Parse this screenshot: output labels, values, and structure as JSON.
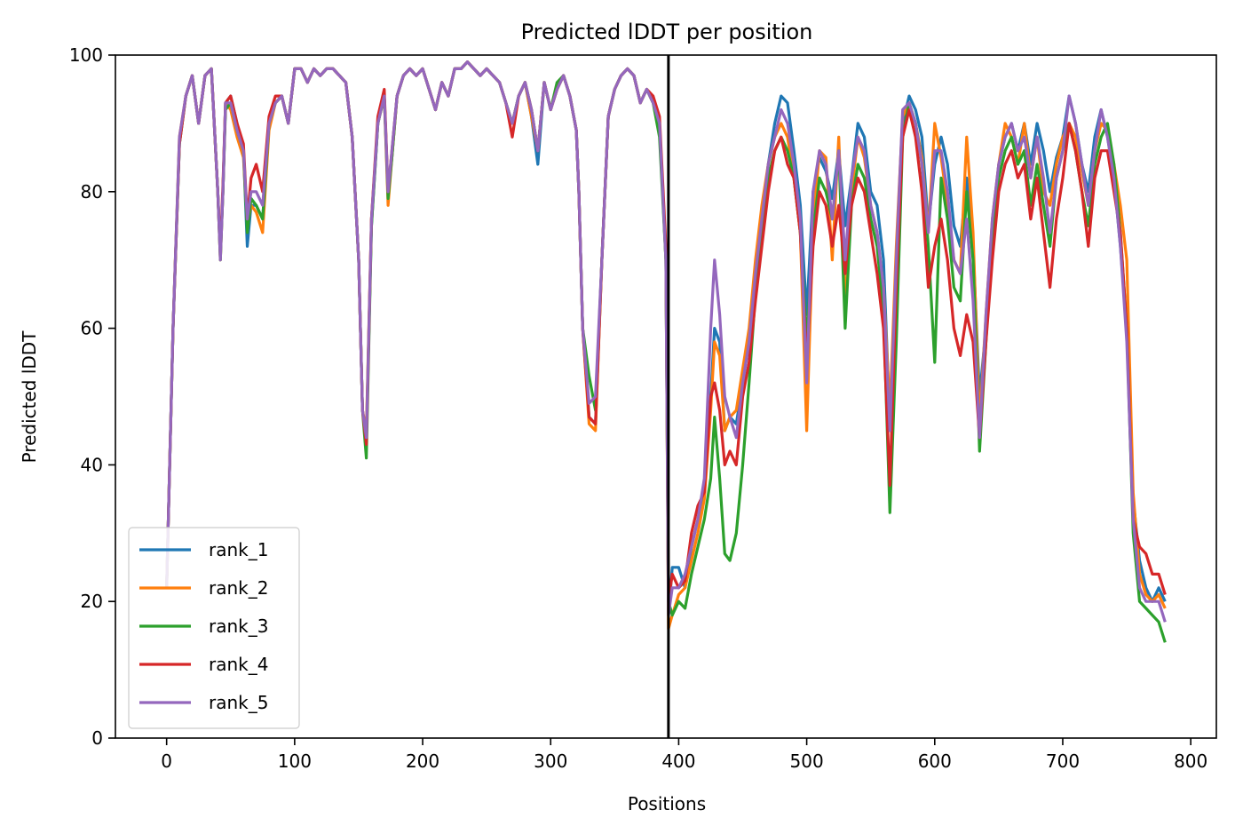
{
  "chart_data": {
    "type": "line",
    "title": "Predicted lDDT per position",
    "xlabel": "Positions",
    "ylabel": "Predicted lDDT",
    "xlim": [
      -40,
      820
    ],
    "ylim": [
      0,
      100
    ],
    "xticks": [
      0,
      100,
      200,
      300,
      400,
      500,
      600,
      700,
      800
    ],
    "yticks": [
      0,
      20,
      40,
      60,
      80,
      100
    ],
    "grid": false,
    "legend_position": "lower-left",
    "vline": {
      "x": 392,
      "color": "#000000"
    },
    "x": [
      0,
      5,
      10,
      15,
      20,
      25,
      30,
      35,
      40,
      42,
      44,
      46,
      50,
      55,
      60,
      63,
      66,
      70,
      75,
      80,
      85,
      90,
      95,
      100,
      105,
      110,
      115,
      120,
      125,
      130,
      135,
      140,
      145,
      150,
      153,
      156,
      160,
      165,
      170,
      173,
      176,
      180,
      185,
      190,
      195,
      200,
      205,
      210,
      215,
      220,
      225,
      230,
      235,
      240,
      245,
      250,
      255,
      260,
      265,
      270,
      275,
      280,
      285,
      290,
      295,
      300,
      305,
      310,
      315,
      320,
      322,
      325,
      330,
      335,
      340,
      345,
      350,
      355,
      360,
      365,
      370,
      375,
      380,
      385,
      390,
      392,
      395,
      400,
      405,
      410,
      415,
      420,
      425,
      428,
      432,
      436,
      440,
      445,
      450,
      455,
      460,
      465,
      470,
      475,
      480,
      485,
      490,
      495,
      500,
      505,
      510,
      515,
      520,
      525,
      530,
      535,
      540,
      545,
      550,
      555,
      560,
      565,
      570,
      575,
      580,
      585,
      590,
      595,
      600,
      605,
      610,
      615,
      620,
      625,
      630,
      635,
      640,
      645,
      650,
      655,
      660,
      665,
      670,
      675,
      680,
      685,
      690,
      695,
      700,
      705,
      710,
      715,
      720,
      725,
      730,
      735,
      740,
      745,
      750,
      755,
      760,
      765,
      770,
      775,
      780
    ],
    "series": [
      {
        "name": "rank_1",
        "color": "#1f77b4",
        "values": [
          22,
          60,
          87,
          94,
          97,
          90,
          97,
          98,
          80,
          71,
          80,
          93,
          94,
          90,
          86,
          72,
          78,
          78,
          76,
          90,
          93,
          94,
          90,
          98,
          98,
          96,
          98,
          97,
          98,
          98,
          97,
          96,
          88,
          70,
          48,
          44,
          75,
          90,
          94,
          80,
          85,
          94,
          97,
          98,
          97,
          98,
          95,
          92,
          96,
          94,
          98,
          98,
          99,
          98,
          97,
          98,
          97,
          96,
          93,
          90,
          94,
          96,
          91,
          84,
          96,
          92,
          95,
          97,
          94,
          89,
          80,
          60,
          47,
          46,
          70,
          91,
          95,
          97,
          98,
          97,
          93,
          95,
          93,
          90,
          70,
          18,
          25,
          25,
          22,
          28,
          32,
          37,
          50,
          60,
          58,
          45,
          47,
          46,
          52,
          58,
          68,
          76,
          84,
          90,
          94,
          93,
          86,
          78,
          62,
          80,
          85,
          83,
          79,
          86,
          75,
          82,
          90,
          88,
          80,
          78,
          70,
          46,
          70,
          90,
          94,
          92,
          88,
          75,
          84,
          88,
          84,
          75,
          72,
          82,
          72,
          50,
          60,
          75,
          84,
          88,
          90,
          86,
          90,
          84,
          90,
          86,
          80,
          85,
          88,
          94,
          90,
          84,
          80,
          88,
          92,
          88,
          82,
          72,
          60,
          35,
          26,
          22,
          20,
          22,
          20
        ]
      },
      {
        "name": "rank_2",
        "color": "#ff7f0e",
        "values": [
          22,
          60,
          88,
          94,
          97,
          90,
          97,
          98,
          80,
          70,
          80,
          93,
          92,
          88,
          85,
          75,
          78,
          77,
          74,
          89,
          93,
          94,
          90,
          98,
          98,
          96,
          98,
          97,
          98,
          98,
          97,
          96,
          88,
          70,
          48,
          45,
          76,
          90,
          94,
          78,
          85,
          94,
          97,
          98,
          97,
          98,
          95,
          92,
          96,
          94,
          98,
          98,
          99,
          98,
          97,
          98,
          97,
          96,
          93,
          90,
          94,
          96,
          91,
          86,
          96,
          92,
          95,
          97,
          94,
          89,
          80,
          60,
          46,
          45,
          70,
          91,
          95,
          97,
          98,
          97,
          93,
          95,
          93,
          90,
          70,
          16,
          18,
          21,
          22,
          26,
          30,
          35,
          48,
          58,
          56,
          45,
          47,
          48,
          54,
          60,
          70,
          78,
          84,
          88,
          90,
          88,
          82,
          74,
          45,
          75,
          86,
          85,
          70,
          88,
          63,
          80,
          88,
          85,
          78,
          74,
          66,
          48,
          72,
          91,
          93,
          90,
          85,
          74,
          90,
          85,
          78,
          70,
          68,
          88,
          74,
          46,
          62,
          76,
          84,
          90,
          88,
          84,
          90,
          82,
          88,
          80,
          78,
          84,
          88,
          90,
          88,
          83,
          78,
          86,
          90,
          89,
          84,
          78,
          70,
          36,
          24,
          21,
          20,
          21,
          19
        ]
      },
      {
        "name": "rank_3",
        "color": "#2ca02c",
        "values": [
          22,
          60,
          87,
          94,
          97,
          90,
          97,
          98,
          80,
          70,
          80,
          92,
          93,
          89,
          86,
          74,
          79,
          78,
          76,
          90,
          93,
          94,
          90,
          98,
          98,
          96,
          98,
          97,
          98,
          98,
          97,
          96,
          88,
          70,
          48,
          41,
          75,
          90,
          94,
          79,
          85,
          94,
          97,
          98,
          97,
          98,
          95,
          92,
          96,
          94,
          98,
          98,
          99,
          98,
          97,
          98,
          97,
          96,
          93,
          90,
          94,
          96,
          92,
          86,
          96,
          92,
          96,
          97,
          94,
          89,
          80,
          60,
          53,
          48,
          70,
          91,
          95,
          97,
          98,
          97,
          93,
          95,
          93,
          88,
          70,
          20,
          18,
          20,
          19,
          24,
          28,
          32,
          38,
          47,
          38,
          27,
          26,
          30,
          40,
          52,
          65,
          74,
          82,
          86,
          88,
          86,
          82,
          74,
          58,
          74,
          82,
          80,
          76,
          86,
          60,
          78,
          84,
          82,
          76,
          72,
          62,
          33,
          58,
          88,
          93,
          90,
          84,
          72,
          55,
          82,
          76,
          66,
          64,
          80,
          70,
          42,
          58,
          74,
          82,
          86,
          88,
          84,
          86,
          78,
          84,
          78,
          72,
          82,
          86,
          90,
          86,
          80,
          75,
          84,
          88,
          90,
          84,
          74,
          60,
          30,
          20,
          19,
          18,
          17,
          14
        ]
      },
      {
        "name": "rank_4",
        "color": "#d62728",
        "values": [
          22,
          60,
          87,
          94,
          97,
          90,
          97,
          98,
          80,
          71,
          81,
          93,
          94,
          90,
          87,
          76,
          82,
          84,
          80,
          91,
          94,
          94,
          90,
          98,
          98,
          96,
          98,
          97,
          98,
          98,
          97,
          96,
          88,
          70,
          48,
          43,
          76,
          91,
          95,
          80,
          86,
          94,
          97,
          98,
          97,
          98,
          95,
          92,
          96,
          94,
          98,
          98,
          99,
          98,
          97,
          98,
          97,
          96,
          93,
          88,
          94,
          96,
          92,
          86,
          96,
          92,
          95,
          97,
          94,
          89,
          80,
          60,
          47,
          46,
          70,
          91,
          95,
          97,
          98,
          97,
          93,
          95,
          94,
          91,
          72,
          20,
          24,
          22,
          23,
          30,
          34,
          36,
          50,
          52,
          48,
          40,
          42,
          40,
          50,
          55,
          64,
          72,
          80,
          86,
          88,
          84,
          82,
          74,
          55,
          72,
          80,
          78,
          72,
          78,
          68,
          78,
          82,
          80,
          74,
          68,
          60,
          37,
          66,
          88,
          92,
          88,
          80,
          66,
          72,
          76,
          70,
          60,
          56,
          62,
          58,
          44,
          58,
          70,
          80,
          84,
          86,
          82,
          84,
          76,
          82,
          74,
          66,
          76,
          82,
          90,
          86,
          80,
          72,
          82,
          86,
          86,
          80,
          74,
          60,
          32,
          28,
          27,
          24,
          24,
          21
        ]
      },
      {
        "name": "rank_5",
        "color": "#9467bd",
        "values": [
          22,
          60,
          88,
          94,
          97,
          90,
          97,
          98,
          80,
          70,
          80,
          93,
          93,
          89,
          86,
          76,
          80,
          80,
          78,
          90,
          93,
          94,
          90,
          98,
          98,
          96,
          98,
          97,
          98,
          98,
          97,
          96,
          88,
          70,
          48,
          44,
          76,
          90,
          94,
          80,
          86,
          94,
          97,
          98,
          97,
          98,
          95,
          92,
          96,
          94,
          98,
          98,
          99,
          98,
          97,
          98,
          97,
          96,
          93,
          90,
          94,
          96,
          92,
          86,
          96,
          92,
          95,
          97,
          94,
          89,
          80,
          60,
          49,
          50,
          70,
          91,
          95,
          97,
          98,
          97,
          93,
          95,
          93,
          90,
          70,
          18,
          22,
          22,
          24,
          28,
          32,
          38,
          60,
          70,
          62,
          50,
          47,
          44,
          52,
          58,
          68,
          76,
          84,
          88,
          92,
          90,
          84,
          76,
          52,
          80,
          86,
          84,
          76,
          86,
          70,
          82,
          88,
          86,
          78,
          74,
          66,
          45,
          70,
          92,
          93,
          90,
          84,
          74,
          86,
          86,
          80,
          70,
          68,
          76,
          64,
          44,
          62,
          76,
          84,
          88,
          90,
          86,
          88,
          82,
          88,
          82,
          74,
          82,
          86,
          94,
          90,
          84,
          78,
          86,
          92,
          88,
          82,
          72,
          58,
          32,
          22,
          20,
          20,
          20,
          17
        ]
      }
    ]
  }
}
